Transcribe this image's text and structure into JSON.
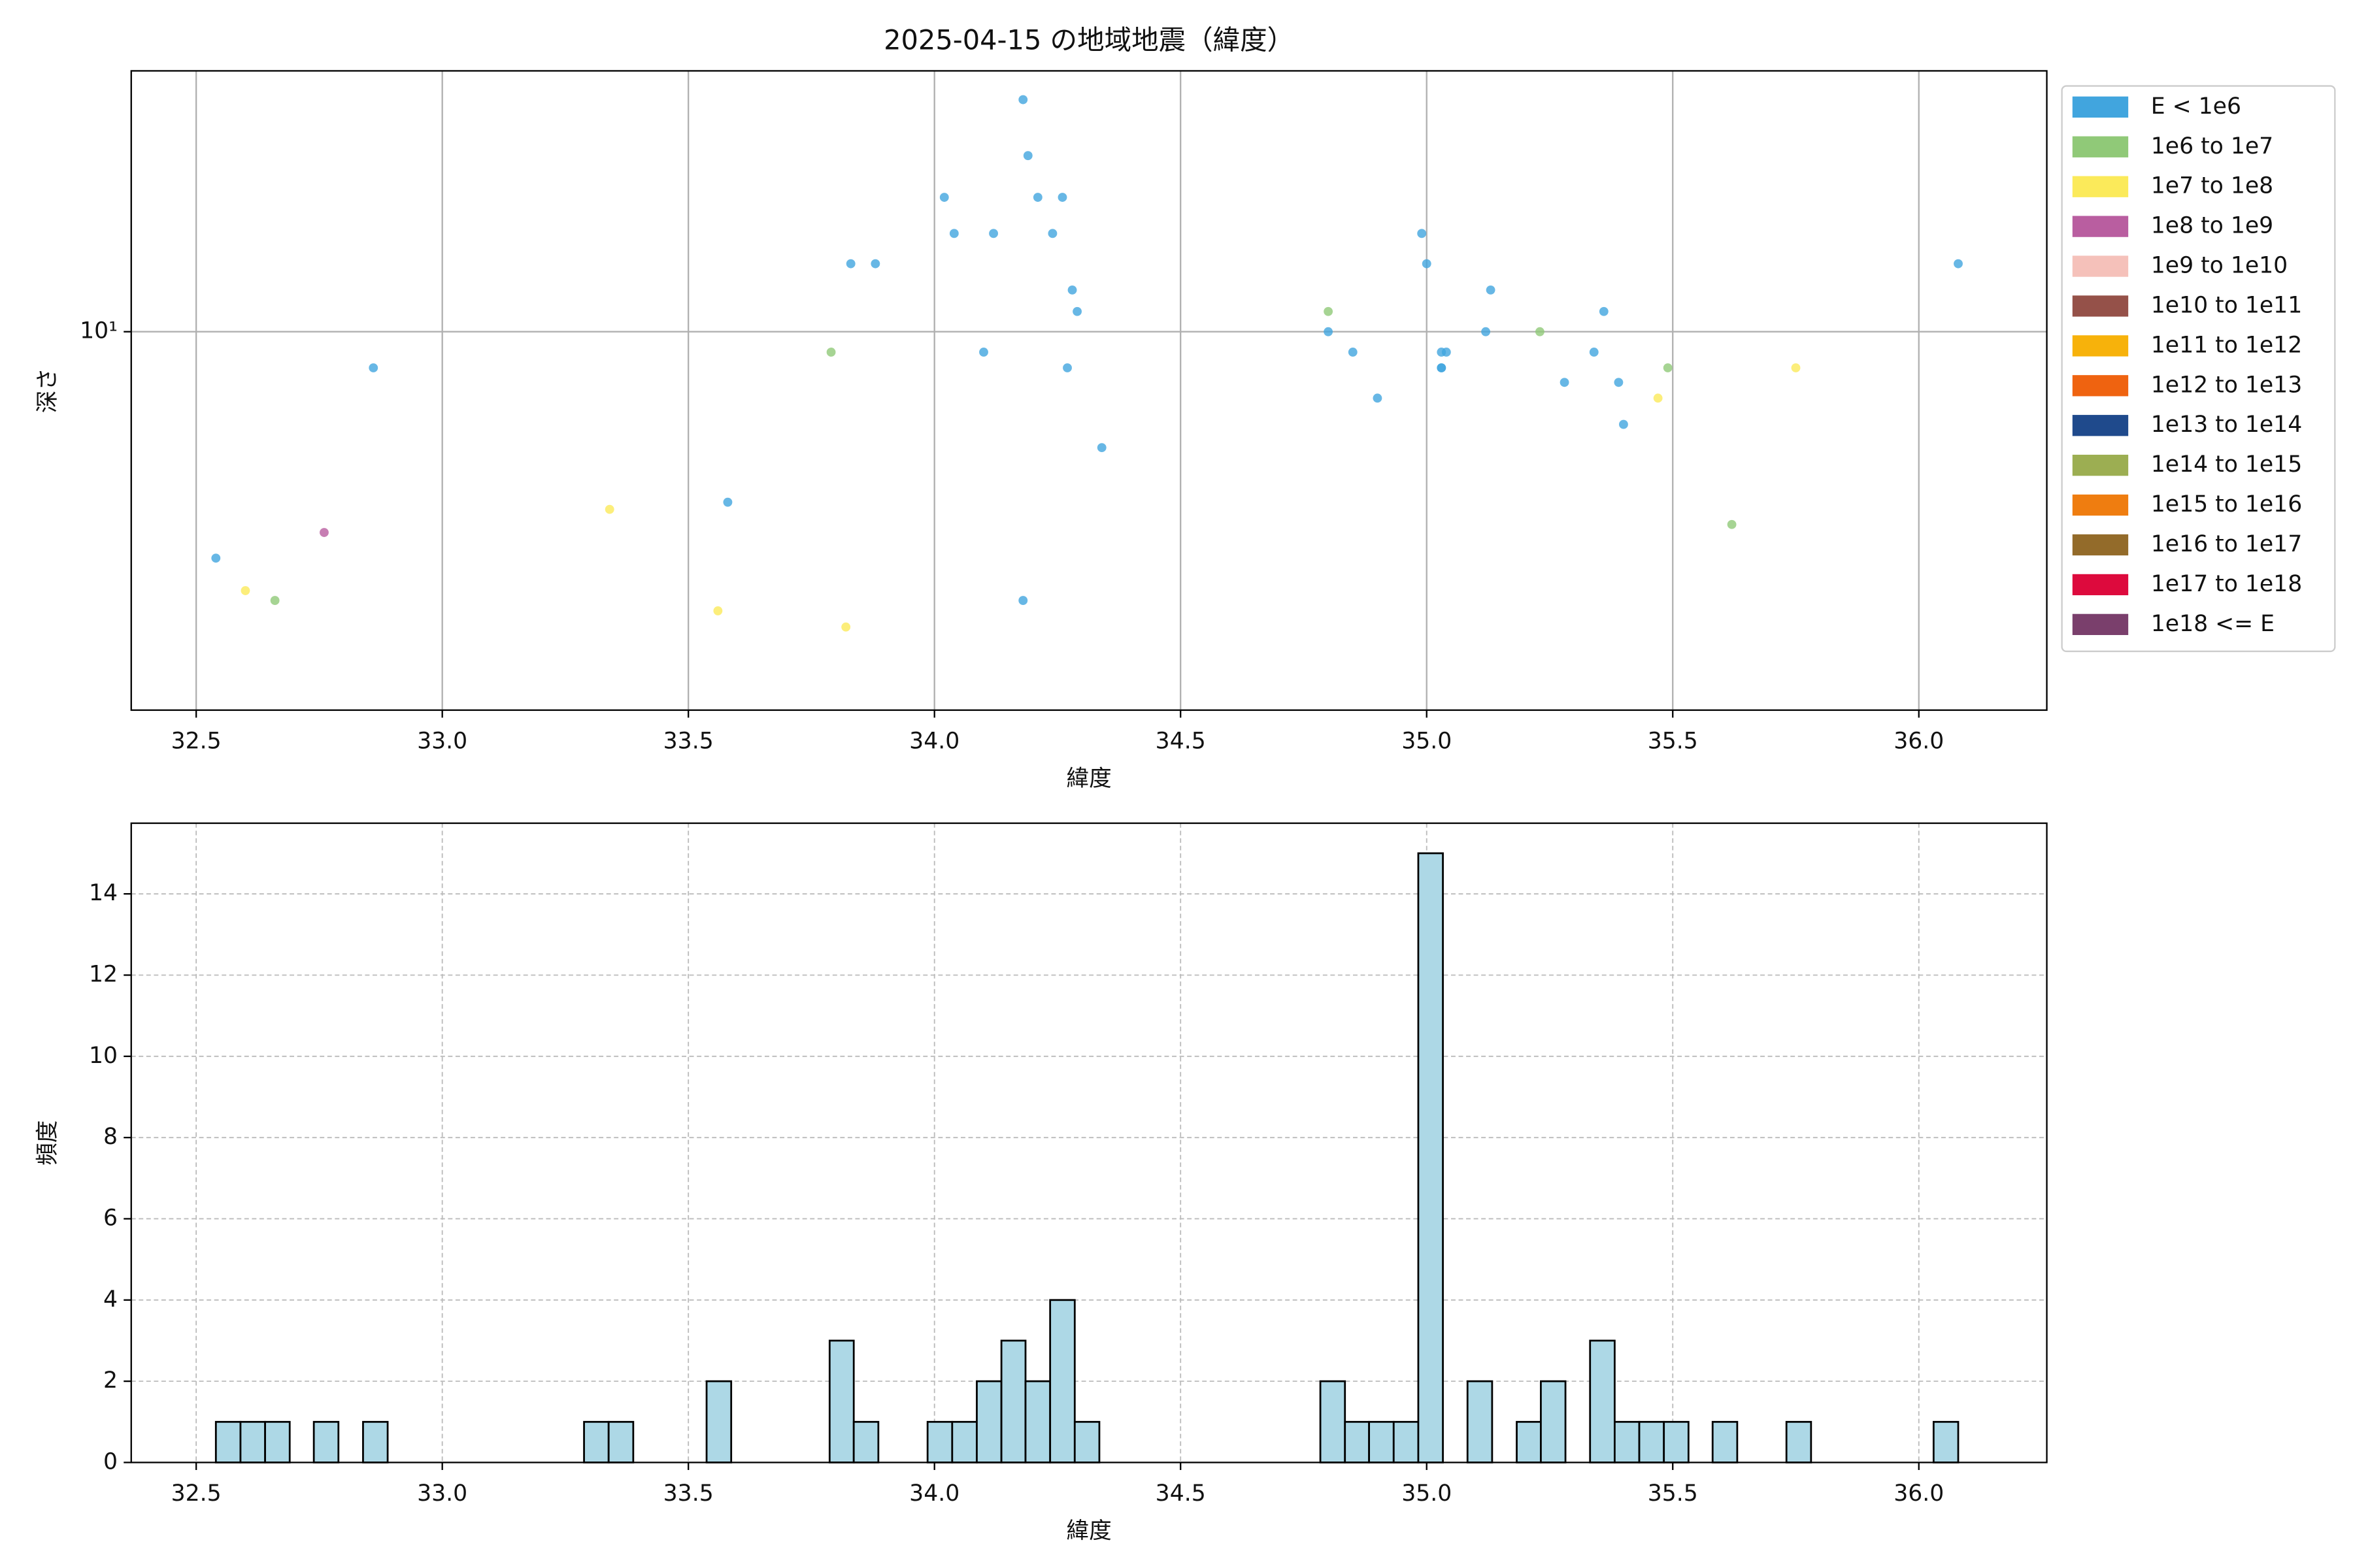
{
  "chart_data": [
    {
      "type": "scatter",
      "title": "2025-04-15 の地域地震（緯度）",
      "x_label": "緯度",
      "y_label": "深さ",
      "y_scale": "log",
      "grid": true,
      "legend": "outside right",
      "xlim": [
        32.368,
        36.26
      ],
      "ylim": [
        1.42,
        38.4
      ],
      "xticks": [
        32.5,
        {
          "value": 33,
          "label": "33.0"
        },
        33.5,
        {
          "value": 34,
          "label": "34.0"
        },
        34.5,
        {
          "value": 35,
          "label": "35.0"
        },
        35.5,
        {
          "value": 36,
          "label": "36.0"
        }
      ],
      "yticks": [
        {
          "value": 10,
          "label": "10¹"
        }
      ],
      "series": [
        {
          "name": "E < 1e6",
          "color": "#41a5de",
          "x": [
            32.54,
            32.86,
            33.58,
            33.83,
            33.88,
            34.02,
            34.04,
            34.1,
            34.12,
            34.18,
            34.19,
            34.18,
            34.21,
            34.24,
            34.26,
            34.28,
            34.29,
            34.27,
            34.34,
            34.8,
            34.85,
            34.9,
            34.99,
            35.0,
            35.03,
            35.04,
            35.03,
            35.03,
            35.12,
            35.13,
            35.28,
            35.34,
            35.36,
            35.39,
            35.4,
            36.08
          ],
          "values": [
            3.11,
            8.3,
            4.15,
            14.2,
            14.2,
            20,
            16.6,
            9.0,
            16.6,
            33.1,
            24.8,
            2.5,
            20,
            16.6,
            20,
            12.4,
            11.1,
            8.3,
            5.5,
            10,
            9.0,
            7.1,
            16.6,
            14.2,
            9,
            9,
            8.3,
            8.3,
            10,
            12.4,
            7.7,
            9,
            11.1,
            7.7,
            6.2,
            14.2
          ]
        },
        {
          "name": "1e6 to 1e7",
          "color": "#90c978",
          "x": [
            32.66,
            33.79,
            34.8,
            35.23,
            35.49,
            35.62
          ],
          "values": [
            2.5,
            9,
            11.1,
            10,
            8.3,
            3.7
          ]
        },
        {
          "name": "1e7 to 1e8",
          "color": "#fbea5a",
          "x": [
            32.6,
            33.34,
            33.56,
            33.82,
            35.47,
            35.75
          ],
          "values": [
            2.63,
            4.0,
            2.37,
            2.18,
            7.1,
            8.3
          ]
        },
        {
          "name": "1e8 to 1e9",
          "color": "#b95ea0",
          "x": [
            32.76
          ],
          "values": [
            3.55
          ]
        },
        {
          "name": "1e9 to 1e10",
          "color": "#f5c1ba",
          "x": [],
          "values": []
        },
        {
          "name": "1e10 to 1e11",
          "color": "#955149",
          "x": [],
          "values": []
        },
        {
          "name": "1e11 to 1e12",
          "color": "#f7b20b",
          "x": [],
          "values": []
        },
        {
          "name": "1e12 to 1e13",
          "color": "#ef6310",
          "x": [],
          "values": []
        },
        {
          "name": "1e13 to 1e14",
          "color": "#1f4a8c",
          "x": [],
          "values": []
        },
        {
          "name": "1e14 to 1e15",
          "color": "#9cae52",
          "x": [],
          "values": []
        },
        {
          "name": "1e15 to 1e16",
          "color": "#ef7d10",
          "x": [],
          "values": []
        },
        {
          "name": "1e16 to 1e17",
          "color": "#936b2a",
          "x": [],
          "values": []
        },
        {
          "name": "1e17 to 1e18",
          "color": "#dd0a3d",
          "x": [],
          "values": []
        },
        {
          "name": "1e18 <= E",
          "color": "#7a3f6c",
          "x": [],
          "values": []
        }
      ]
    },
    {
      "type": "histogram",
      "x_label": "緯度",
      "y_label": "頻度",
      "grid": true,
      "color": "#add8e6",
      "xlim": [
        32.368,
        36.26
      ],
      "ylim": [
        0,
        15.74
      ],
      "xticks": [
        32.5,
        {
          "value": 33,
          "label": "33.0"
        },
        33.5,
        {
          "value": 34,
          "label": "34.0"
        },
        34.5,
        {
          "value": 35,
          "label": "35.0"
        },
        35.5,
        {
          "value": 36,
          "label": "36.0"
        }
      ],
      "yticks": [
        0,
        2,
        4,
        6,
        8,
        10,
        12,
        14
      ],
      "bins": [
        32.54,
        32.59,
        32.64,
        32.69,
        32.739,
        32.789,
        32.839,
        32.889,
        32.939,
        32.989,
        33.039,
        33.088,
        33.138,
        33.188,
        33.238,
        33.288,
        33.338,
        33.388,
        33.437,
        33.487,
        33.537,
        33.587,
        33.637,
        33.687,
        33.737,
        33.787,
        33.836,
        33.886,
        33.936,
        33.986,
        34.036,
        34.086,
        34.136,
        34.185,
        34.235,
        34.285,
        34.335,
        34.385,
        34.435,
        34.485,
        34.534,
        34.584,
        34.634,
        34.684,
        34.734,
        34.784,
        34.834,
        34.883,
        34.933,
        34.983,
        35.033,
        35.083,
        35.133,
        35.183,
        35.232,
        35.282,
        35.332,
        35.382,
        35.432,
        35.482,
        35.532,
        35.581,
        35.631,
        35.681,
        35.731,
        35.781,
        35.831,
        35.881,
        35.93,
        35.98,
        36.03,
        36.08
      ],
      "values": [
        1,
        1,
        1,
        0,
        1,
        0,
        1,
        0,
        0,
        0,
        0,
        0,
        0,
        0,
        0,
        1,
        1,
        0,
        0,
        0,
        2,
        0,
        0,
        0,
        0,
        3,
        1,
        0,
        0,
        1,
        1,
        2,
        3,
        2,
        4,
        1,
        0,
        0,
        0,
        0,
        0,
        0,
        0,
        0,
        0,
        2,
        1,
        1,
        1,
        15,
        0,
        2,
        0,
        1,
        2,
        0,
        3,
        1,
        1,
        1,
        0,
        1,
        0,
        0,
        1,
        0,
        0,
        0,
        0,
        0,
        1
      ]
    }
  ]
}
